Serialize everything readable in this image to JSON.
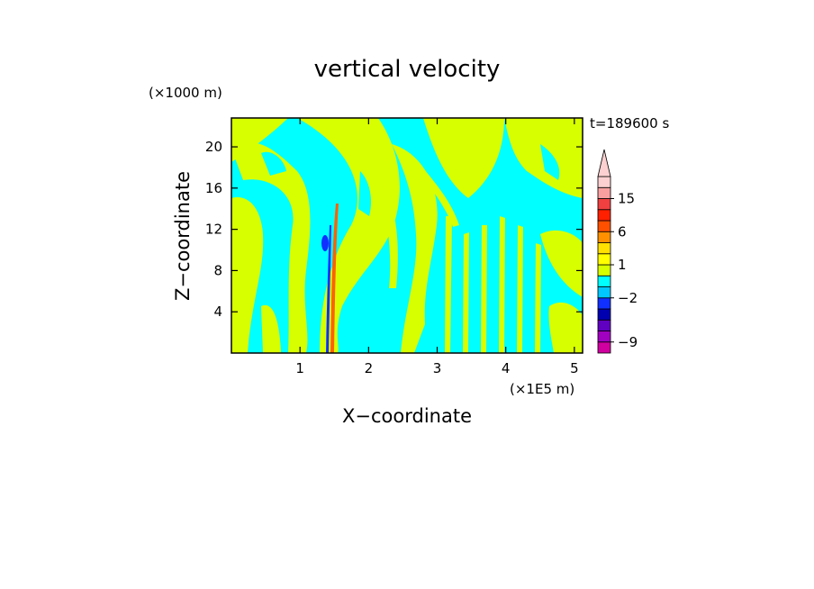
{
  "chart_data": {
    "type": "heatmap",
    "title": "vertical velocity",
    "xlabel": "X−coordinate",
    "ylabel": "Z−coordinate",
    "x_unit": "(×1E5 m)",
    "y_unit": "(×1000 m)",
    "timestamp": "t=189600 s",
    "xlim": [
      0,
      5.12
    ],
    "ylim": [
      0,
      22.8
    ],
    "x_ticks": [
      1,
      2,
      3,
      4,
      5
    ],
    "y_ticks": [
      4,
      8,
      12,
      16,
      20
    ],
    "colorbar": {
      "levels": [
        -11,
        -9,
        -7,
        -5,
        -3,
        -2,
        -1,
        0,
        1,
        2,
        3,
        6,
        9,
        12,
        15,
        18,
        21
      ],
      "tick_labels": [
        "15",
        "6",
        "1",
        "−2",
        "−9"
      ],
      "tick_values": [
        15,
        6,
        1,
        -2,
        -9
      ],
      "colors": [
        "#d000a0",
        "#a000c0",
        "#6000c0",
        "#0000b0",
        "#1030ff",
        "#00c8ff",
        "#00ffff",
        "#d8ff00",
        "#ffff00",
        "#ffe000",
        "#ff9000",
        "#ff5000",
        "#ff2000",
        "#f04040",
        "#f8a0a0",
        "#fcd0d0"
      ],
      "extend": "max"
    },
    "background_color": "#00ffff",
    "positive_color": "#d8ff00",
    "core_colors": {
      "updraft": "#ff6000",
      "downdraft": "#1030ff"
    }
  }
}
